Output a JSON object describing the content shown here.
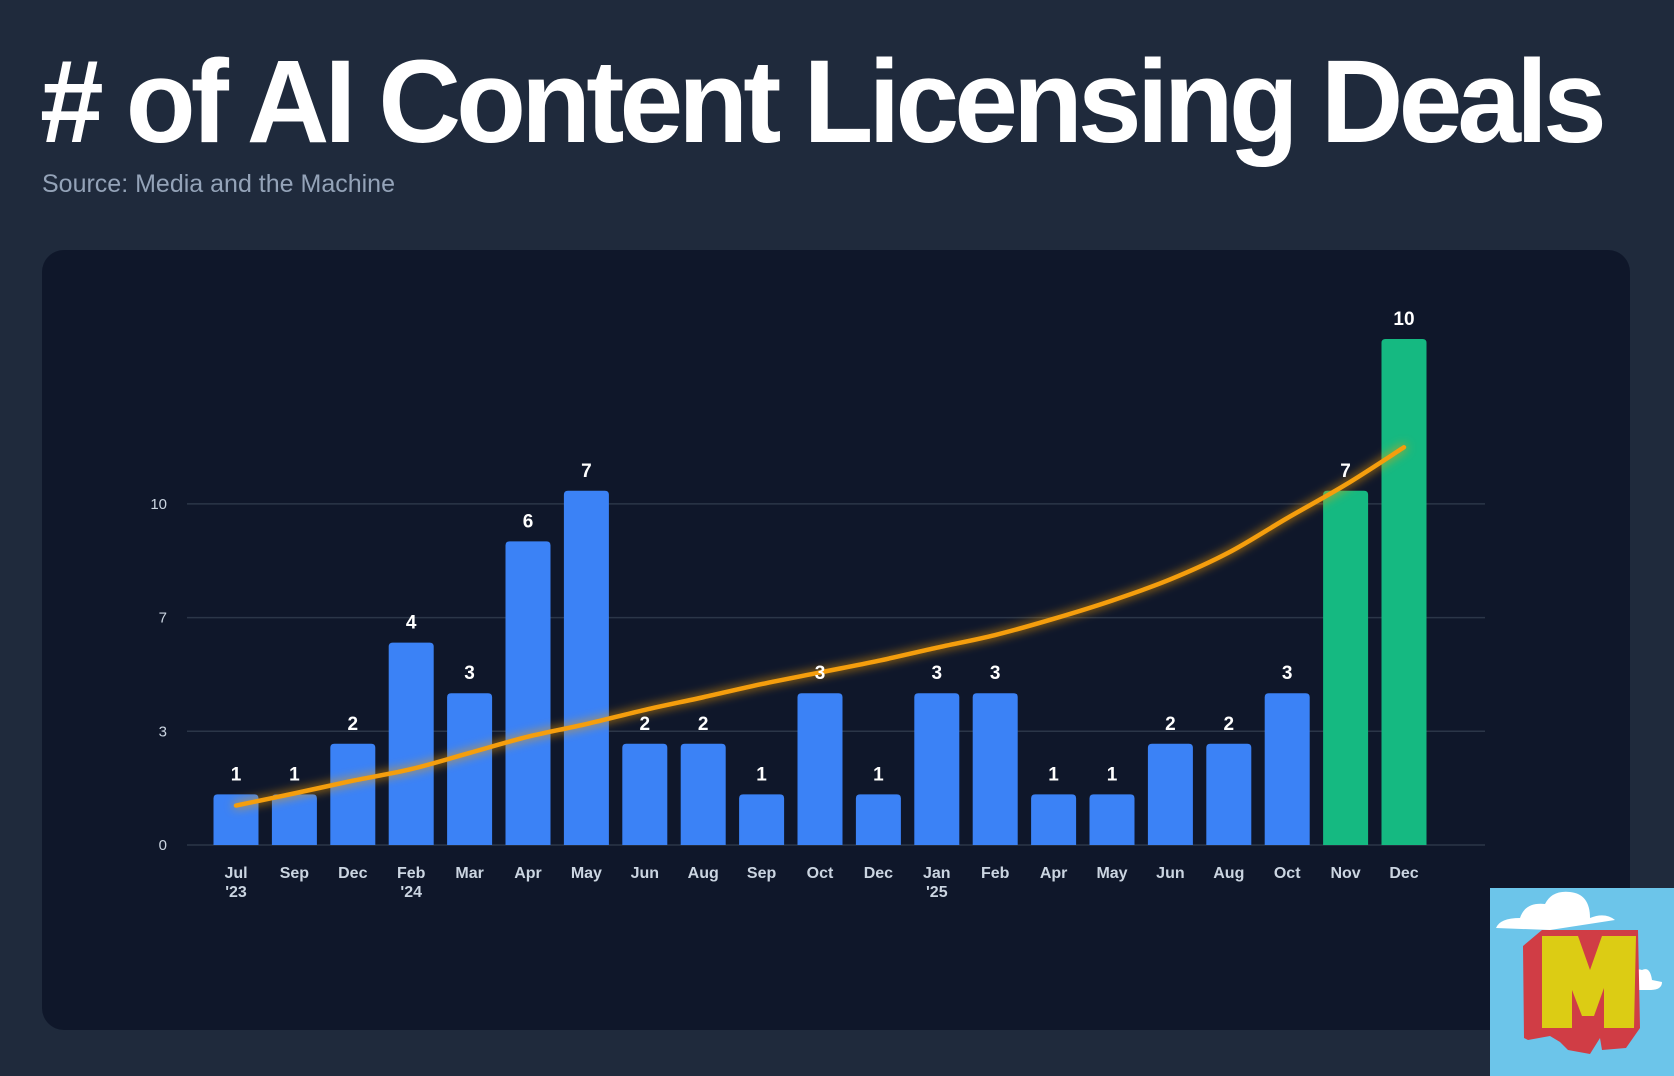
{
  "title": "# of AI Content Licensing Deals",
  "subtitle": "Source: Media and the Machine",
  "colors": {
    "background": "#1f2a3c",
    "panel": "#0f172a",
    "bar": "#3b82f6",
    "bar_highlight": "#15b981",
    "trend": "#f59e0b"
  },
  "chart_data": {
    "type": "bar",
    "title": "",
    "xlabel": "",
    "ylabel": "",
    "categories": [
      {
        "label": "Jul",
        "sub": "'23"
      },
      {
        "label": "Sep",
        "sub": ""
      },
      {
        "label": "Dec",
        "sub": ""
      },
      {
        "label": "Feb",
        "sub": "'24"
      },
      {
        "label": "Mar",
        "sub": ""
      },
      {
        "label": "Apr",
        "sub": ""
      },
      {
        "label": "May",
        "sub": ""
      },
      {
        "label": "Jun",
        "sub": ""
      },
      {
        "label": "Aug",
        "sub": ""
      },
      {
        "label": "Sep",
        "sub": ""
      },
      {
        "label": "Oct",
        "sub": ""
      },
      {
        "label": "Dec",
        "sub": ""
      },
      {
        "label": "Jan",
        "sub": "'25"
      },
      {
        "label": "Feb",
        "sub": ""
      },
      {
        "label": "Apr",
        "sub": ""
      },
      {
        "label": "May",
        "sub": ""
      },
      {
        "label": "Jun",
        "sub": ""
      },
      {
        "label": "Aug",
        "sub": ""
      },
      {
        "label": "Oct",
        "sub": ""
      },
      {
        "label": "Nov",
        "sub": ""
      },
      {
        "label": "Dec",
        "sub": ""
      }
    ],
    "values": [
      1,
      1,
      2,
      4,
      3,
      6,
      7,
      2,
      2,
      1,
      3,
      1,
      3,
      3,
      1,
      1,
      2,
      2,
      3,
      7,
      10
    ],
    "highlighted": [
      false,
      false,
      false,
      false,
      false,
      false,
      false,
      false,
      false,
      false,
      false,
      false,
      false,
      false,
      false,
      false,
      false,
      false,
      false,
      true,
      true
    ],
    "data_labels": [
      "1",
      "1",
      "2",
      "4",
      "3",
      "6",
      "7",
      "2",
      "2",
      "1",
      "3",
      "1",
      "3",
      "3",
      "1",
      "1",
      "2",
      "2",
      "3",
      "7",
      "10"
    ],
    "y_tick_labels": [
      "0",
      "3",
      "7",
      "10"
    ],
    "grid": true,
    "legend": "none",
    "trend_line": {
      "type": "line",
      "values": [
        0.78,
        1.02,
        1.27,
        1.5,
        1.82,
        2.14,
        2.39,
        2.67,
        2.92,
        3.18,
        3.41,
        3.64,
        3.9,
        4.15,
        4.47,
        4.83,
        5.25,
        5.78,
        6.46,
        7.12,
        7.86
      ]
    }
  },
  "logo": {
    "text": "M"
  }
}
